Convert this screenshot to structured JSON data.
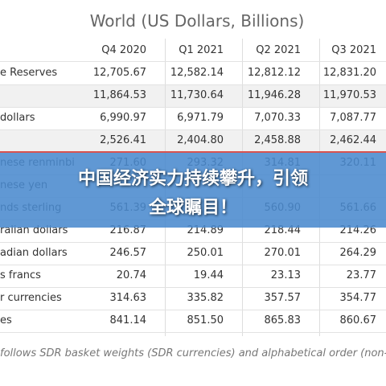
{
  "table": {
    "title": "World (US Dollars, Billions)",
    "columns": [
      "Q4 2020",
      "Q1 2021",
      "Q2 2021",
      "Q3 2021"
    ],
    "rows": [
      {
        "label": "e Reserves",
        "values": [
          "12,705.67",
          "12,582.14",
          "12,812.12",
          "12,831.20"
        ]
      },
      {
        "values": [
          "11,864.53",
          "11,730.64",
          "11,946.28",
          "11,970.53"
        ]
      },
      {
        "label": "dollars",
        "values": [
          "6,990.97",
          "6,971.79",
          "7,070.33",
          "7,087.77"
        ]
      },
      {
        "values": [
          "2,526.41",
          "2,404.80",
          "2,458.88",
          "2,462.44"
        ]
      },
      {
        "label": "nese renminbi",
        "values": [
          "271.60",
          "293.32",
          "314.81",
          "320.11"
        ]
      },
      {
        "label": "nese yen",
        "values": [
          null,
          null,
          null,
          null
        ]
      },
      {
        "label": "nds sterling",
        "values": [
          "561.39",
          null,
          "560.90",
          "561.66"
        ]
      },
      {
        "label": "ralian dollars",
        "values": [
          "216.87",
          "214.89",
          "218.44",
          "214.26"
        ]
      },
      {
        "label": "adian dollars",
        "values": [
          "246.57",
          "250.01",
          "270.01",
          "264.29"
        ]
      },
      {
        "label": "s francs",
        "values": [
          "20.74",
          "19.44",
          "23.13",
          "23.77"
        ]
      },
      {
        "label": "r currencies",
        "values": [
          "314.63",
          "335.82",
          "357.57",
          "354.77"
        ]
      },
      {
        "label": "es",
        "values": [
          "841.14",
          "851.50",
          "865.83",
          "860.67"
        ]
      }
    ],
    "footnote": "follows SDR basket weights (SDR currencies) and alphabetical order (non-"
  },
  "banner": {
    "lines": [
      "中国经济实力持续攀升，引领",
      "全球瞩目！"
    ]
  }
}
